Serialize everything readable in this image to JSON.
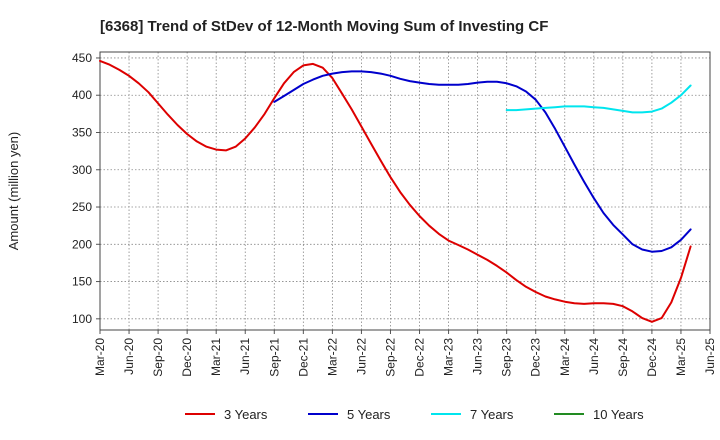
{
  "chart_data": {
    "type": "line",
    "title": "[6368]  Trend of StDev of 12-Month Moving Sum of Investing CF",
    "ylabel": "Amount (million yen)",
    "xlabel": "",
    "ylim": [
      85,
      458
    ],
    "yticks": [
      100,
      150,
      200,
      250,
      300,
      350,
      400,
      450
    ],
    "x_tick_labels": [
      "Mar-20",
      "Jun-20",
      "Sep-20",
      "Dec-20",
      "Mar-21",
      "Jun-21",
      "Sep-21",
      "Dec-21",
      "Mar-22",
      "Jun-22",
      "Sep-22",
      "Dec-22",
      "Mar-23",
      "Jun-23",
      "Sep-23",
      "Dec-23",
      "Mar-24",
      "Jun-24",
      "Sep-24",
      "Dec-24",
      "Mar-25",
      "Jun-25"
    ],
    "grid": true,
    "legend_position": "bottom",
    "series": [
      {
        "name": "3 Years",
        "color": "#dd0000",
        "points": [
          [
            "Mar-20",
            446
          ],
          [
            "Apr-20",
            441
          ],
          [
            "May-20",
            434
          ],
          [
            "Jun-20",
            426
          ],
          [
            "Jul-20",
            416
          ],
          [
            "Aug-20",
            404
          ],
          [
            "Sep-20",
            389
          ],
          [
            "Oct-20",
            374
          ],
          [
            "Nov-20",
            360
          ],
          [
            "Dec-20",
            348
          ],
          [
            "Jan-21",
            338
          ],
          [
            "Feb-21",
            331
          ],
          [
            "Mar-21",
            327
          ],
          [
            "Apr-21",
            326
          ],
          [
            "May-21",
            331
          ],
          [
            "Jun-21",
            342
          ],
          [
            "Jul-21",
            357
          ],
          [
            "Aug-21",
            375
          ],
          [
            "Sep-21",
            396
          ],
          [
            "Oct-21",
            416
          ],
          [
            "Nov-21",
            431
          ],
          [
            "Dec-21",
            440
          ],
          [
            "Jan-22",
            442
          ],
          [
            "Feb-22",
            437
          ],
          [
            "Mar-22",
            423
          ],
          [
            "Apr-22",
            402
          ],
          [
            "May-22",
            381
          ],
          [
            "Jun-22",
            358
          ],
          [
            "Jul-22",
            335
          ],
          [
            "Aug-22",
            312
          ],
          [
            "Sep-22",
            290
          ],
          [
            "Oct-22",
            270
          ],
          [
            "Nov-22",
            253
          ],
          [
            "Dec-22",
            238
          ],
          [
            "Jan-23",
            225
          ],
          [
            "Feb-23",
            214
          ],
          [
            "Mar-23",
            205
          ],
          [
            "Apr-23",
            199
          ],
          [
            "May-23",
            193
          ],
          [
            "Jun-23",
            186
          ],
          [
            "Jul-23",
            179
          ],
          [
            "Aug-23",
            171
          ],
          [
            "Sep-23",
            162
          ],
          [
            "Oct-23",
            152
          ],
          [
            "Nov-23",
            143
          ],
          [
            "Dec-23",
            136
          ],
          [
            "Jan-24",
            130
          ],
          [
            "Feb-24",
            126
          ],
          [
            "Mar-24",
            123
          ],
          [
            "Apr-24",
            121
          ],
          [
            "May-24",
            120
          ],
          [
            "Jun-24",
            121
          ],
          [
            "Jul-24",
            121
          ],
          [
            "Aug-24",
            120
          ],
          [
            "Sep-24",
            117
          ],
          [
            "Oct-24",
            110
          ],
          [
            "Nov-24",
            101
          ],
          [
            "Dec-24",
            96
          ],
          [
            "Jan-25",
            101
          ],
          [
            "Feb-25",
            122
          ],
          [
            "Mar-25",
            155
          ],
          [
            "Apr-25",
            197
          ]
        ]
      },
      {
        "name": "5 Years",
        "color": "#0000cc",
        "points": [
          [
            "Sep-21",
            391
          ],
          [
            "Oct-21",
            399
          ],
          [
            "Nov-21",
            407
          ],
          [
            "Dec-21",
            415
          ],
          [
            "Jan-22",
            421
          ],
          [
            "Feb-22",
            426
          ],
          [
            "Mar-22",
            429
          ],
          [
            "Apr-22",
            431
          ],
          [
            "May-22",
            432
          ],
          [
            "Jun-22",
            432
          ],
          [
            "Jul-22",
            431
          ],
          [
            "Aug-22",
            429
          ],
          [
            "Sep-22",
            426
          ],
          [
            "Oct-22",
            422
          ],
          [
            "Nov-22",
            419
          ],
          [
            "Dec-22",
            417
          ],
          [
            "Jan-23",
            415
          ],
          [
            "Feb-23",
            414
          ],
          [
            "Mar-23",
            414
          ],
          [
            "Apr-23",
            414
          ],
          [
            "May-23",
            415
          ],
          [
            "Jun-23",
            417
          ],
          [
            "Jul-23",
            418
          ],
          [
            "Aug-23",
            418
          ],
          [
            "Sep-23",
            416
          ],
          [
            "Oct-23",
            412
          ],
          [
            "Nov-23",
            405
          ],
          [
            "Dec-23",
            394
          ],
          [
            "Jan-24",
            377
          ],
          [
            "Feb-24",
            355
          ],
          [
            "Mar-24",
            331
          ],
          [
            "Apr-24",
            307
          ],
          [
            "May-24",
            284
          ],
          [
            "Jun-24",
            262
          ],
          [
            "Jul-24",
            242
          ],
          [
            "Aug-24",
            226
          ],
          [
            "Sep-24",
            213
          ],
          [
            "Oct-24",
            200
          ],
          [
            "Nov-24",
            193
          ],
          [
            "Dec-24",
            190
          ],
          [
            "Jan-25",
            191
          ],
          [
            "Feb-25",
            196
          ],
          [
            "Mar-25",
            206
          ],
          [
            "Apr-25",
            220
          ]
        ]
      },
      {
        "name": "7 Years",
        "color": "#00e5ee",
        "points": [
          [
            "Sep-23",
            380
          ],
          [
            "Oct-23",
            380
          ],
          [
            "Nov-23",
            381
          ],
          [
            "Dec-23",
            382
          ],
          [
            "Jan-24",
            383
          ],
          [
            "Feb-24",
            384
          ],
          [
            "Mar-24",
            385
          ],
          [
            "Apr-24",
            385
          ],
          [
            "May-24",
            385
          ],
          [
            "Jun-24",
            384
          ],
          [
            "Jul-24",
            383
          ],
          [
            "Aug-24",
            381
          ],
          [
            "Sep-24",
            379
          ],
          [
            "Oct-24",
            377
          ],
          [
            "Nov-24",
            377
          ],
          [
            "Dec-24",
            378
          ],
          [
            "Jan-25",
            382
          ],
          [
            "Feb-25",
            390
          ],
          [
            "Mar-25",
            400
          ],
          [
            "Apr-25",
            413
          ]
        ]
      },
      {
        "name": "10 Years",
        "color": "#228b22",
        "points": []
      }
    ]
  }
}
